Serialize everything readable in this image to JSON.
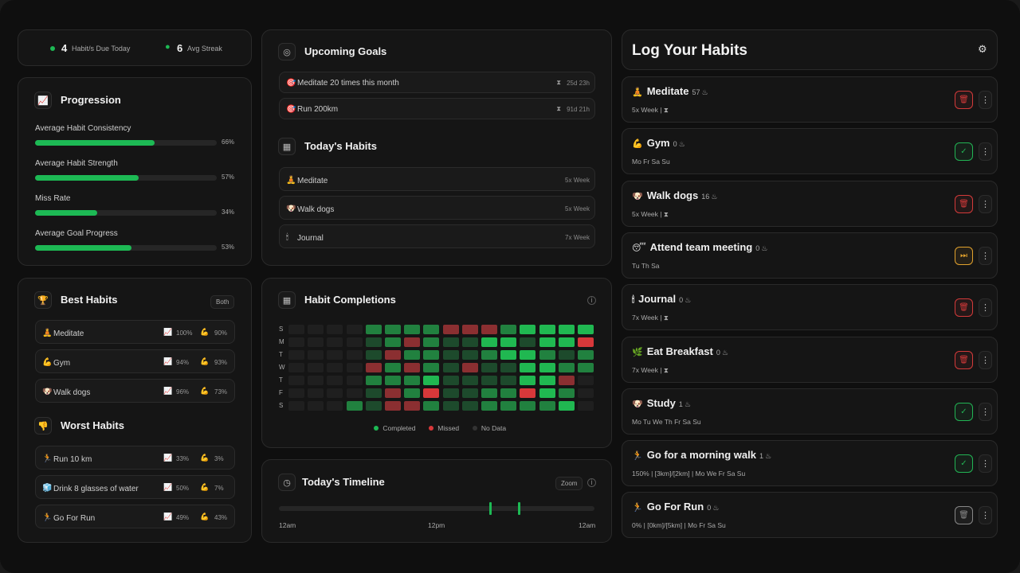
{
  "stats": {
    "due_count": "4",
    "due_label": "Habit/s Due Today",
    "streak_count": "6",
    "streak_label": "Avg Streak"
  },
  "progression": {
    "title": "Progression",
    "items": [
      {
        "label": "Average Habit Consistency",
        "value": "66%",
        "fraction": 0.66
      },
      {
        "label": "Average Habit Strength",
        "value": "57%",
        "fraction": 0.57
      },
      {
        "label": "Miss Rate",
        "value": "34%",
        "fraction": 0.34
      },
      {
        "label": "Average Goal Progress",
        "value": "53%",
        "fraction": 0.53
      }
    ]
  },
  "best": {
    "title": "Best Habits",
    "filter": "Both",
    "items": [
      {
        "emoji": "🧘",
        "name": "Meditate",
        "consistency": "100%",
        "strength": "90%"
      },
      {
        "emoji": "💪",
        "name": "Gym",
        "consistency": "94%",
        "strength": "93%"
      },
      {
        "emoji": "🐶",
        "name": "Walk dogs",
        "consistency": "96%",
        "strength": "73%"
      }
    ]
  },
  "worst": {
    "title": "Worst Habits",
    "items": [
      {
        "emoji": "🏃",
        "name": "Run 10 km",
        "consistency": "33%",
        "strength": "3%"
      },
      {
        "emoji": "🧊",
        "name": "Drink 8 glasses of water",
        "consistency": "50%",
        "strength": "7%"
      },
      {
        "emoji": "🏃",
        "name": "Go For Run",
        "consistency": "49%",
        "strength": "43%"
      }
    ]
  },
  "goals": {
    "title": "Upcoming Goals",
    "items": [
      {
        "emoji": "🎯",
        "name": "Meditate 20 times this month",
        "due": "25d 23h"
      },
      {
        "emoji": "🎯",
        "name": "Run 200km",
        "due": "91d 21h"
      }
    ]
  },
  "today": {
    "title": "Today's Habits",
    "items": [
      {
        "emoji": "🧘",
        "name": "Meditate",
        "freq": "5x Week"
      },
      {
        "emoji": "🐶",
        "name": "Walk dogs",
        "freq": "5x Week"
      },
      {
        "emoji": "🕯",
        "name": "Journal",
        "freq": "7x Week"
      }
    ]
  },
  "completions": {
    "title": "Habit Completions",
    "day_labels": [
      "S",
      "M",
      "T",
      "W",
      "T",
      "F",
      "S"
    ],
    "legend": {
      "completed": "Completed",
      "missed": "Missed",
      "nodata": "No Data"
    },
    "colors": {
      "empty": "#1f1f1f",
      "dark": "#1d4a2c",
      "mid": "#21813f",
      "bright": "#20b851",
      "missed": "#8b2f31",
      "missed_bright": "#d8383a"
    },
    "grid": [
      [
        "e",
        "e",
        "e",
        "e",
        "m",
        "m",
        "m",
        "m",
        "x",
        "x",
        "x",
        "m",
        "b",
        "b",
        "b",
        "B"
      ],
      [
        "e",
        "e",
        "e",
        "e",
        "d",
        "m",
        "x",
        "m",
        "d",
        "d",
        "b",
        "b",
        "d",
        "b",
        "b",
        "X"
      ],
      [
        "e",
        "e",
        "e",
        "e",
        "d",
        "x",
        "m",
        "m",
        "d",
        "d",
        "m",
        "B",
        "b",
        "m",
        "d",
        "m"
      ],
      [
        "e",
        "e",
        "e",
        "e",
        "x",
        "m",
        "x",
        "m",
        "d",
        "x",
        "d",
        "d",
        "b",
        "b",
        "m",
        "m"
      ],
      [
        "e",
        "e",
        "e",
        "e",
        "m",
        "m",
        "m",
        "b",
        "d",
        "d",
        "d",
        "d",
        "b",
        "b",
        "x",
        "e"
      ],
      [
        "e",
        "e",
        "e",
        "e",
        "d",
        "x",
        "m",
        "X",
        "d",
        "d",
        "m",
        "m",
        "X",
        "b",
        "m",
        "e"
      ],
      [
        "e",
        "e",
        "e",
        "m",
        "d",
        "x",
        "x",
        "m",
        "d",
        "d",
        "m",
        "m",
        "m",
        "m",
        "B",
        "e"
      ]
    ]
  },
  "timeline": {
    "title": "Today's Timeline",
    "zoom": "Zoom",
    "labels": [
      "12am",
      "12pm",
      "12am"
    ],
    "marks": [
      0.67,
      0.76
    ]
  },
  "log": {
    "title": "Log Your Habits",
    "items": [
      {
        "emoji": "🧘",
        "name": "Meditate",
        "streak": "57",
        "sub": "5x Week  |  ⧗",
        "state": "delete",
        "color": "#d43a3a"
      },
      {
        "emoji": "💪",
        "name": "Gym",
        "streak": "0",
        "sub": "Mo Fr Sa Su",
        "state": "check",
        "color": "#22b454"
      },
      {
        "emoji": "🐶",
        "name": "Walk dogs",
        "streak": "16",
        "sub": "5x Week  |  ⧗",
        "state": "delete",
        "color": "#d43a3a"
      },
      {
        "emoji": "😴",
        "name": "Attend team meeting",
        "streak": "0",
        "sub": "Tu Th Sa",
        "state": "skip",
        "color": "#e2a22d"
      },
      {
        "emoji": "🕯",
        "name": "Journal",
        "streak": "0",
        "sub": "7x Week  |  ⧗",
        "state": "delete",
        "color": "#d43a3a"
      },
      {
        "emoji": "🌿",
        "name": "Eat Breakfast",
        "streak": "0",
        "sub": "7x Week  |  ⧗",
        "state": "delete",
        "color": "#d43a3a"
      },
      {
        "emoji": "🐶",
        "name": "Study",
        "streak": "1",
        "sub": "Mo Tu We Th Fr Sa Su",
        "state": "check",
        "color": "#22b454"
      },
      {
        "emoji": "🏃",
        "name": "Go for a morning walk",
        "streak": "1",
        "sub": "150%  |  [3km]/[2km]  |  Mo We Fr Sa Su",
        "state": "check",
        "color": "#22b454"
      },
      {
        "emoji": "🏃",
        "name": "Go For Run",
        "streak": "0",
        "sub": "0%  |  [0km]/[5km]  |  Mo Fr Sa Su",
        "state": "delete",
        "color": "#888888"
      }
    ]
  }
}
